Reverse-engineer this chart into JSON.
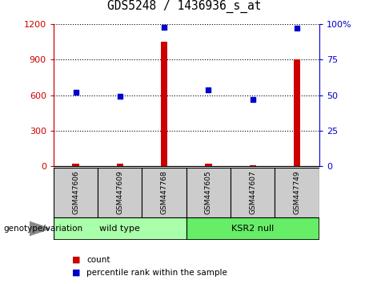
{
  "title": "GDS5248 / 1436936_s_at",
  "samples": [
    "GSM447606",
    "GSM447609",
    "GSM447768",
    "GSM447605",
    "GSM447607",
    "GSM447749"
  ],
  "counts": [
    20,
    18,
    1050,
    22,
    5,
    900
  ],
  "percentiles": [
    52,
    49,
    98,
    54,
    47,
    97
  ],
  "bar_color": "#cc0000",
  "dot_color": "#0000cc",
  "ylim_left": [
    0,
    1200
  ],
  "ylim_right": [
    0,
    100
  ],
  "yticks_left": [
    0,
    300,
    600,
    900,
    1200
  ],
  "yticks_right": [
    0,
    25,
    50,
    75,
    100
  ],
  "ytick_labels_left": [
    "0",
    "300",
    "600",
    "900",
    "1200"
  ],
  "ytick_labels_right": [
    "0",
    "25",
    "50",
    "75",
    "100%"
  ],
  "groups": [
    {
      "label": "wild type",
      "indices": [
        0,
        1,
        2
      ],
      "color": "#aaffaa"
    },
    {
      "label": "KSR2 null",
      "indices": [
        3,
        4,
        5
      ],
      "color": "#66ee66"
    }
  ],
  "group_label_prefix": "genotype/variation",
  "legend_count_label": "count",
  "legend_percentile_label": "percentile rank within the sample",
  "bar_width": 0.15,
  "bg_sample_row": "#cccccc",
  "left_axis_color": "#cc0000",
  "right_axis_color": "#0000cc"
}
